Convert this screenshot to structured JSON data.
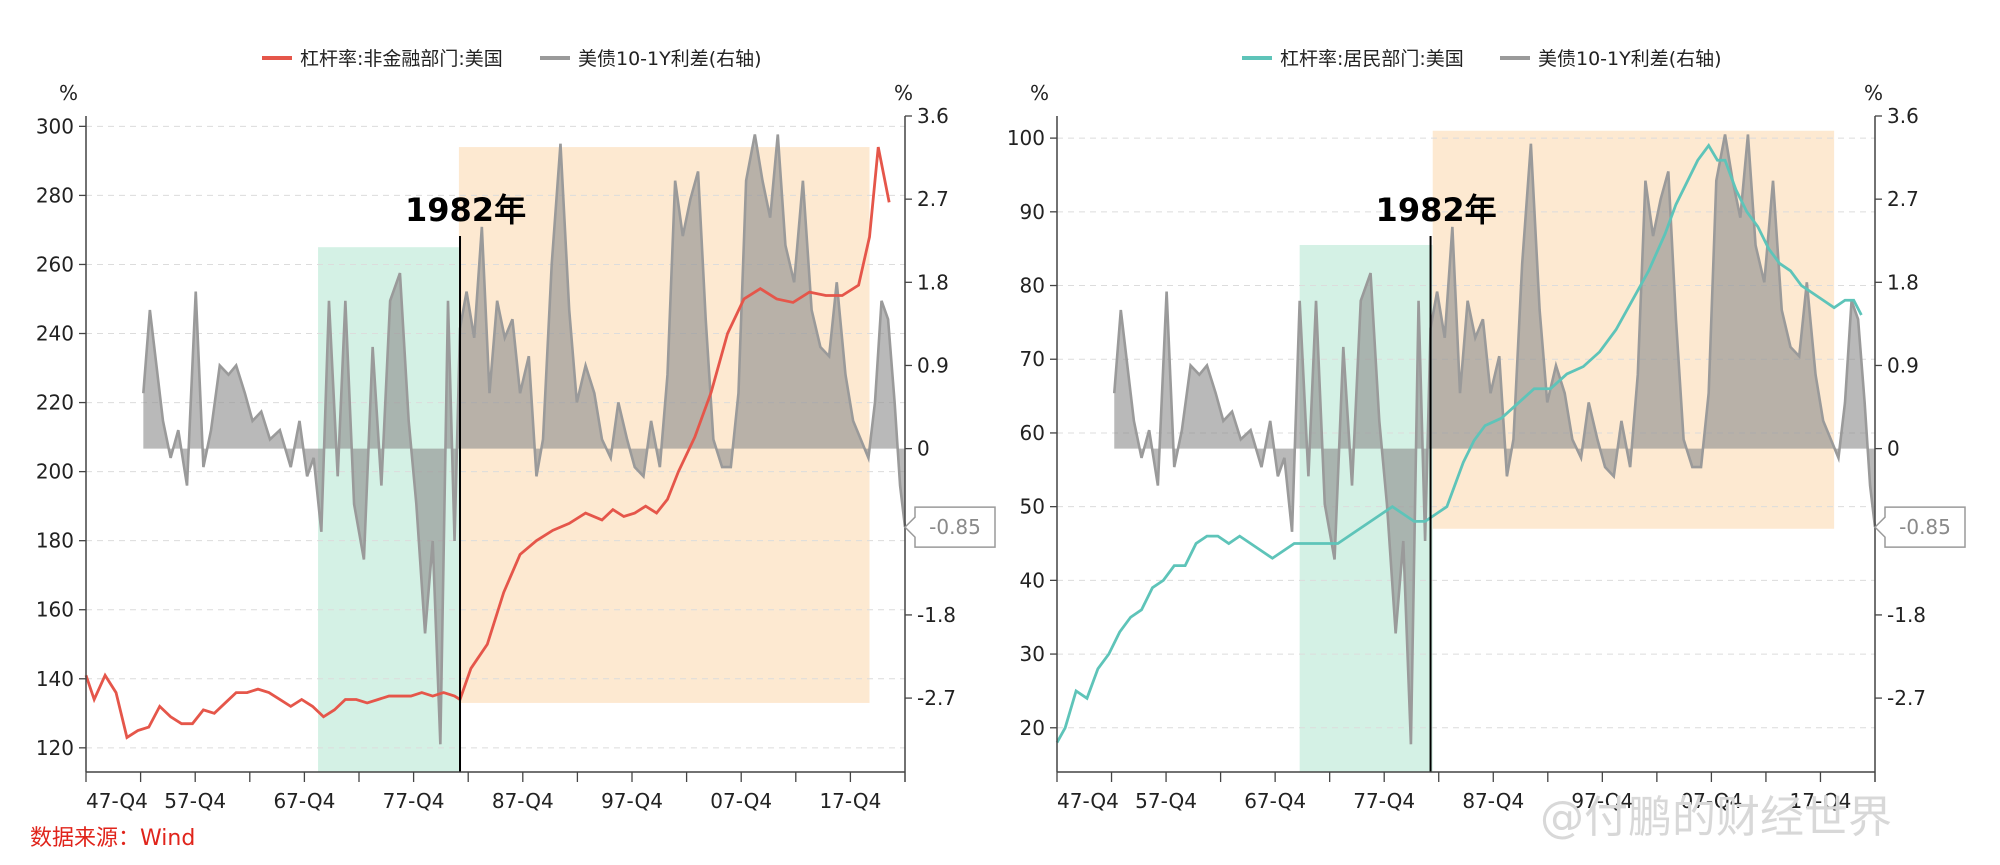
{
  "source_note": "数据来源：Wind",
  "watermark": "@付鹏的财经世界",
  "chart_data": [
    {
      "type": "line",
      "left_unit": "%",
      "right_unit": "%",
      "legend": [
        {
          "name": "杠杆率:非金融部门:美国",
          "color": "#e5564a"
        },
        {
          "name": "美债10-1Y利差(右轴)",
          "color": "#9a9a9a"
        }
      ],
      "x_ticks": [
        "47-Q4",
        "57-Q4",
        "67-Q4",
        "77-Q4",
        "87-Q4",
        "97-Q4",
        "07-Q4",
        "17-Q4"
      ],
      "x_range": [
        1947.75,
        2022.75
      ],
      "y_left_ticks": [
        120,
        140,
        160,
        180,
        200,
        220,
        240,
        260,
        280,
        300
      ],
      "y_left_range": [
        113,
        303
      ],
      "y_right_ticks": [
        3.6,
        2.7,
        1.8,
        0.9,
        0,
        -1.8,
        -2.7
      ],
      "y_right_range": [
        -3.5,
        3.6
      ],
      "annotation": "1982年",
      "annotation_x": 1982.0,
      "callout": "-0.85",
      "shaded_regions": [
        {
          "name": "green",
          "color": "#ccefe0",
          "x_start": 1969.0,
          "x_end": 1981.9,
          "y_top": 265,
          "y_bottom": 113
        },
        {
          "name": "orange",
          "color": "#fde5c9",
          "x_start": 1981.9,
          "x_end": 2019.5,
          "y_top": 294,
          "y_bottom": 133
        }
      ],
      "series": [
        {
          "name": "杠杆率:非金融部门:美国",
          "axis": "left",
          "color": "#e5564a",
          "x": [
            1947.75,
            1948.5,
            1949.5,
            1950.5,
            1951.5,
            1952.5,
            1953.5,
            1954.5,
            1955.5,
            1956.5,
            1957.5,
            1958.5,
            1959.5,
            1960.5,
            1961.5,
            1962.5,
            1963.5,
            1964.5,
            1965.5,
            1966.5,
            1967.5,
            1968.5,
            1969.5,
            1970.5,
            1971.5,
            1972.5,
            1973.5,
            1974.5,
            1975.5,
            1976.5,
            1977.5,
            1978.5,
            1979.5,
            1980.5,
            1981.5,
            1982.0,
            1983.0,
            1984.5,
            1986.0,
            1987.5,
            1989.0,
            1990.5,
            1992.0,
            1993.5,
            1995.0,
            1996.0,
            1997.0,
            1998.0,
            1999.0,
            2000.0,
            2001.0,
            2002.0,
            2003.5,
            2005.0,
            2006.5,
            2008.0,
            2009.5,
            2011.0,
            2012.5,
            2014.0,
            2015.5,
            2017.0,
            2018.5,
            2019.5,
            2020.3,
            2020.8,
            2021.3
          ],
          "values": [
            141,
            134,
            141,
            136,
            123,
            125,
            126,
            132,
            129,
            127,
            127,
            131,
            130,
            133,
            136,
            136,
            137,
            136,
            134,
            132,
            134,
            132,
            129,
            131,
            134,
            134,
            133,
            134,
            135,
            135,
            135,
            136,
            135,
            136,
            135,
            134,
            143,
            150,
            165,
            176,
            180,
            183,
            185,
            188,
            186,
            189,
            187,
            188,
            190,
            188,
            192,
            200,
            210,
            223,
            240,
            250,
            253,
            250,
            249,
            252,
            251,
            251,
            254,
            268,
            294,
            286,
            278
          ]
        },
        {
          "name": "美债10-1Y利差(右轴)",
          "axis": "right",
          "color": "#9a9a9a",
          "x": [
            1953.0,
            1953.6,
            1954.2,
            1954.8,
            1955.5,
            1956.2,
            1957.0,
            1957.8,
            1958.5,
            1959.2,
            1960.0,
            1960.8,
            1961.5,
            1962.3,
            1963.0,
            1963.8,
            1964.6,
            1965.5,
            1966.5,
            1967.3,
            1968.0,
            1968.6,
            1969.3,
            1970.0,
            1970.8,
            1971.5,
            1972.3,
            1973.2,
            1974.0,
            1974.8,
            1975.6,
            1976.5,
            1977.3,
            1978.0,
            1978.8,
            1979.5,
            1980.2,
            1980.9,
            1981.5,
            1982.0,
            1982.6,
            1983.3,
            1984.0,
            1984.7,
            1985.4,
            1986.1,
            1986.8,
            1987.5,
            1988.3,
            1989.0,
            1989.6,
            1990.4,
            1991.2,
            1992.0,
            1992.7,
            1993.5,
            1994.3,
            1995.0,
            1995.8,
            1996.5,
            1997.3,
            1998.0,
            1998.8,
            1999.5,
            2000.3,
            2001.0,
            2001.7,
            2002.4,
            2003.1,
            2003.8,
            2004.5,
            2005.2,
            2006.0,
            2006.8,
            2007.5,
            2008.2,
            2009.0,
            2009.7,
            2010.4,
            2011.1,
            2011.8,
            2012.6,
            2013.4,
            2014.2,
            2015.0,
            2015.8,
            2016.5,
            2017.3,
            2018.0,
            2018.7,
            2019.4,
            2020.0,
            2020.6,
            2021.2,
            2021.8,
            2022.3,
            2022.75
          ],
          "values": [
            0.6,
            1.5,
            0.9,
            0.3,
            -0.1,
            0.2,
            -0.4,
            1.7,
            -0.2,
            0.2,
            0.9,
            0.8,
            0.9,
            0.6,
            0.3,
            0.4,
            0.1,
            0.2,
            -0.2,
            0.3,
            -0.3,
            -0.1,
            -0.9,
            1.6,
            -0.3,
            1.6,
            -0.6,
            -1.2,
            1.1,
            -0.4,
            1.6,
            1.9,
            0.3,
            -0.6,
            -2.0,
            -1.0,
            -3.2,
            1.6,
            -1.0,
            1.3,
            1.7,
            1.2,
            2.4,
            0.6,
            1.6,
            1.2,
            1.4,
            0.6,
            1.0,
            -0.3,
            0.1,
            2.0,
            3.3,
            1.5,
            0.5,
            0.9,
            0.6,
            0.1,
            -0.1,
            0.5,
            0.1,
            -0.2,
            -0.3,
            0.3,
            -0.2,
            0.8,
            2.9,
            2.3,
            2.7,
            3.0,
            1.4,
            0.1,
            -0.2,
            -0.2,
            0.6,
            2.9,
            3.4,
            2.9,
            2.5,
            3.4,
            2.2,
            1.8,
            2.9,
            1.5,
            1.1,
            1.0,
            1.8,
            0.8,
            0.3,
            0.1,
            -0.1,
            0.5,
            1.6,
            1.4,
            0.5,
            -0.4,
            -0.85
          ]
        }
      ]
    },
    {
      "type": "line",
      "left_unit": "%",
      "right_unit": "%",
      "legend": [
        {
          "name": "杠杆率:居民部门:美国",
          "color": "#5ec4b9"
        },
        {
          "name": "美债10-1Y利差(右轴)",
          "color": "#9a9a9a"
        }
      ],
      "x_ticks": [
        "47-Q4",
        "57-Q4",
        "67-Q4",
        "77-Q4",
        "87-Q4",
        "97-Q4",
        "07-Q4",
        "17-Q4"
      ],
      "x_range": [
        1947.75,
        2022.75
      ],
      "y_left_ticks": [
        20,
        30,
        40,
        50,
        60,
        70,
        80,
        90,
        100
      ],
      "y_left_range": [
        14,
        103
      ],
      "y_right_ticks": [
        3.6,
        2.7,
        1.8,
        0.9,
        0,
        -1.8,
        -2.7
      ],
      "y_right_range": [
        -3.5,
        3.6
      ],
      "annotation": "1982年",
      "annotation_x": 1982.0,
      "callout": "-0.85",
      "shaded_regions": [
        {
          "name": "green",
          "color": "#ccefe0",
          "x_start": 1970.0,
          "x_end": 1982.2,
          "y_top": 85.5,
          "y_bottom": 14
        },
        {
          "name": "orange",
          "color": "#fde5c9",
          "x_start": 1982.2,
          "x_end": 2019.0,
          "y_top": 101,
          "y_bottom": 47
        }
      ],
      "series": [
        {
          "name": "杠杆率:居民部门:美国",
          "axis": "left",
          "color": "#5ec4b9",
          "x": [
            1947.75,
            1948.5,
            1949.5,
            1950.5,
            1951.5,
            1952.5,
            1953.5,
            1954.5,
            1955.5,
            1956.5,
            1957.5,
            1958.5,
            1959.5,
            1960.5,
            1961.5,
            1962.5,
            1963.5,
            1964.5,
            1965.5,
            1966.5,
            1967.5,
            1968.5,
            1969.5,
            1970.5,
            1971.5,
            1972.5,
            1973.5,
            1974.5,
            1975.5,
            1976.5,
            1977.5,
            1978.5,
            1979.5,
            1980.5,
            1981.5,
            1982.5,
            1983.5,
            1985.0,
            1986.0,
            1987.0,
            1988.5,
            1990.0,
            1991.5,
            1993.0,
            1994.5,
            1996.0,
            1997.5,
            1999.0,
            2000.5,
            2002.0,
            2003.5,
            2004.5,
            2005.5,
            2006.5,
            2007.5,
            2008.3,
            2009.0,
            2010.0,
            2011.0,
            2012.0,
            2013.0,
            2014.0,
            2015.0,
            2016.0,
            2017.0,
            2018.0,
            2019.0,
            2020.0,
            2020.8,
            2021.5
          ],
          "values": [
            18,
            20,
            25,
            24,
            28,
            30,
            33,
            35,
            36,
            39,
            40,
            42,
            42,
            45,
            46,
            46,
            45,
            46,
            45,
            44,
            43,
            44,
            45,
            45,
            45,
            45,
            45,
            46,
            47,
            48,
            49,
            50,
            49,
            48,
            48,
            49,
            50,
            56,
            59,
            61,
            62,
            64,
            66,
            66,
            68,
            69,
            71,
            74,
            78,
            82,
            87,
            91,
            94,
            97,
            99,
            97,
            97,
            93,
            90,
            88,
            85,
            83,
            82,
            80,
            79,
            78,
            77,
            78,
            78,
            76
          ]
        },
        {
          "name": "美债10-1Y利差(右轴)",
          "axis": "right",
          "color": "#9a9a9a",
          "x": [
            1953.0,
            1953.6,
            1954.2,
            1954.8,
            1955.5,
            1956.2,
            1957.0,
            1957.8,
            1958.5,
            1959.2,
            1960.0,
            1960.8,
            1961.5,
            1962.3,
            1963.0,
            1963.8,
            1964.6,
            1965.5,
            1966.5,
            1967.3,
            1968.0,
            1968.6,
            1969.3,
            1970.0,
            1970.8,
            1971.5,
            1972.3,
            1973.2,
            1974.0,
            1974.8,
            1975.6,
            1976.5,
            1977.3,
            1978.0,
            1978.8,
            1979.5,
            1980.2,
            1980.9,
            1981.5,
            1982.0,
            1982.6,
            1983.3,
            1984.0,
            1984.7,
            1985.4,
            1986.1,
            1986.8,
            1987.5,
            1988.3,
            1989.0,
            1989.6,
            1990.4,
            1991.2,
            1992.0,
            1992.7,
            1993.5,
            1994.3,
            1995.0,
            1995.8,
            1996.5,
            1997.3,
            1998.0,
            1998.8,
            1999.5,
            2000.3,
            2001.0,
            2001.7,
            2002.4,
            2003.1,
            2003.8,
            2004.5,
            2005.2,
            2006.0,
            2006.8,
            2007.5,
            2008.2,
            2009.0,
            2009.7,
            2010.4,
            2011.1,
            2011.8,
            2012.6,
            2013.4,
            2014.2,
            2015.0,
            2015.8,
            2016.5,
            2017.3,
            2018.0,
            2018.7,
            2019.4,
            2020.0,
            2020.6,
            2021.2,
            2021.8,
            2022.3,
            2022.75
          ],
          "values": [
            0.6,
            1.5,
            0.9,
            0.3,
            -0.1,
            0.2,
            -0.4,
            1.7,
            -0.2,
            0.2,
            0.9,
            0.8,
            0.9,
            0.6,
            0.3,
            0.4,
            0.1,
            0.2,
            -0.2,
            0.3,
            -0.3,
            -0.1,
            -0.9,
            1.6,
            -0.3,
            1.6,
            -0.6,
            -1.2,
            1.1,
            -0.4,
            1.6,
            1.9,
            0.3,
            -0.6,
            -2.0,
            -1.0,
            -3.2,
            1.6,
            -1.0,
            1.3,
            1.7,
            1.2,
            2.4,
            0.6,
            1.6,
            1.2,
            1.4,
            0.6,
            1.0,
            -0.3,
            0.1,
            2.0,
            3.3,
            1.5,
            0.5,
            0.9,
            0.6,
            0.1,
            -0.1,
            0.5,
            0.1,
            -0.2,
            -0.3,
            0.3,
            -0.2,
            0.8,
            2.9,
            2.3,
            2.7,
            3.0,
            1.4,
            0.1,
            -0.2,
            -0.2,
            0.6,
            2.9,
            3.4,
            2.9,
            2.5,
            3.4,
            2.2,
            1.8,
            2.9,
            1.5,
            1.1,
            1.0,
            1.8,
            0.8,
            0.3,
            0.1,
            -0.1,
            0.5,
            1.6,
            1.4,
            0.5,
            -0.4,
            -0.85
          ]
        }
      ]
    }
  ]
}
